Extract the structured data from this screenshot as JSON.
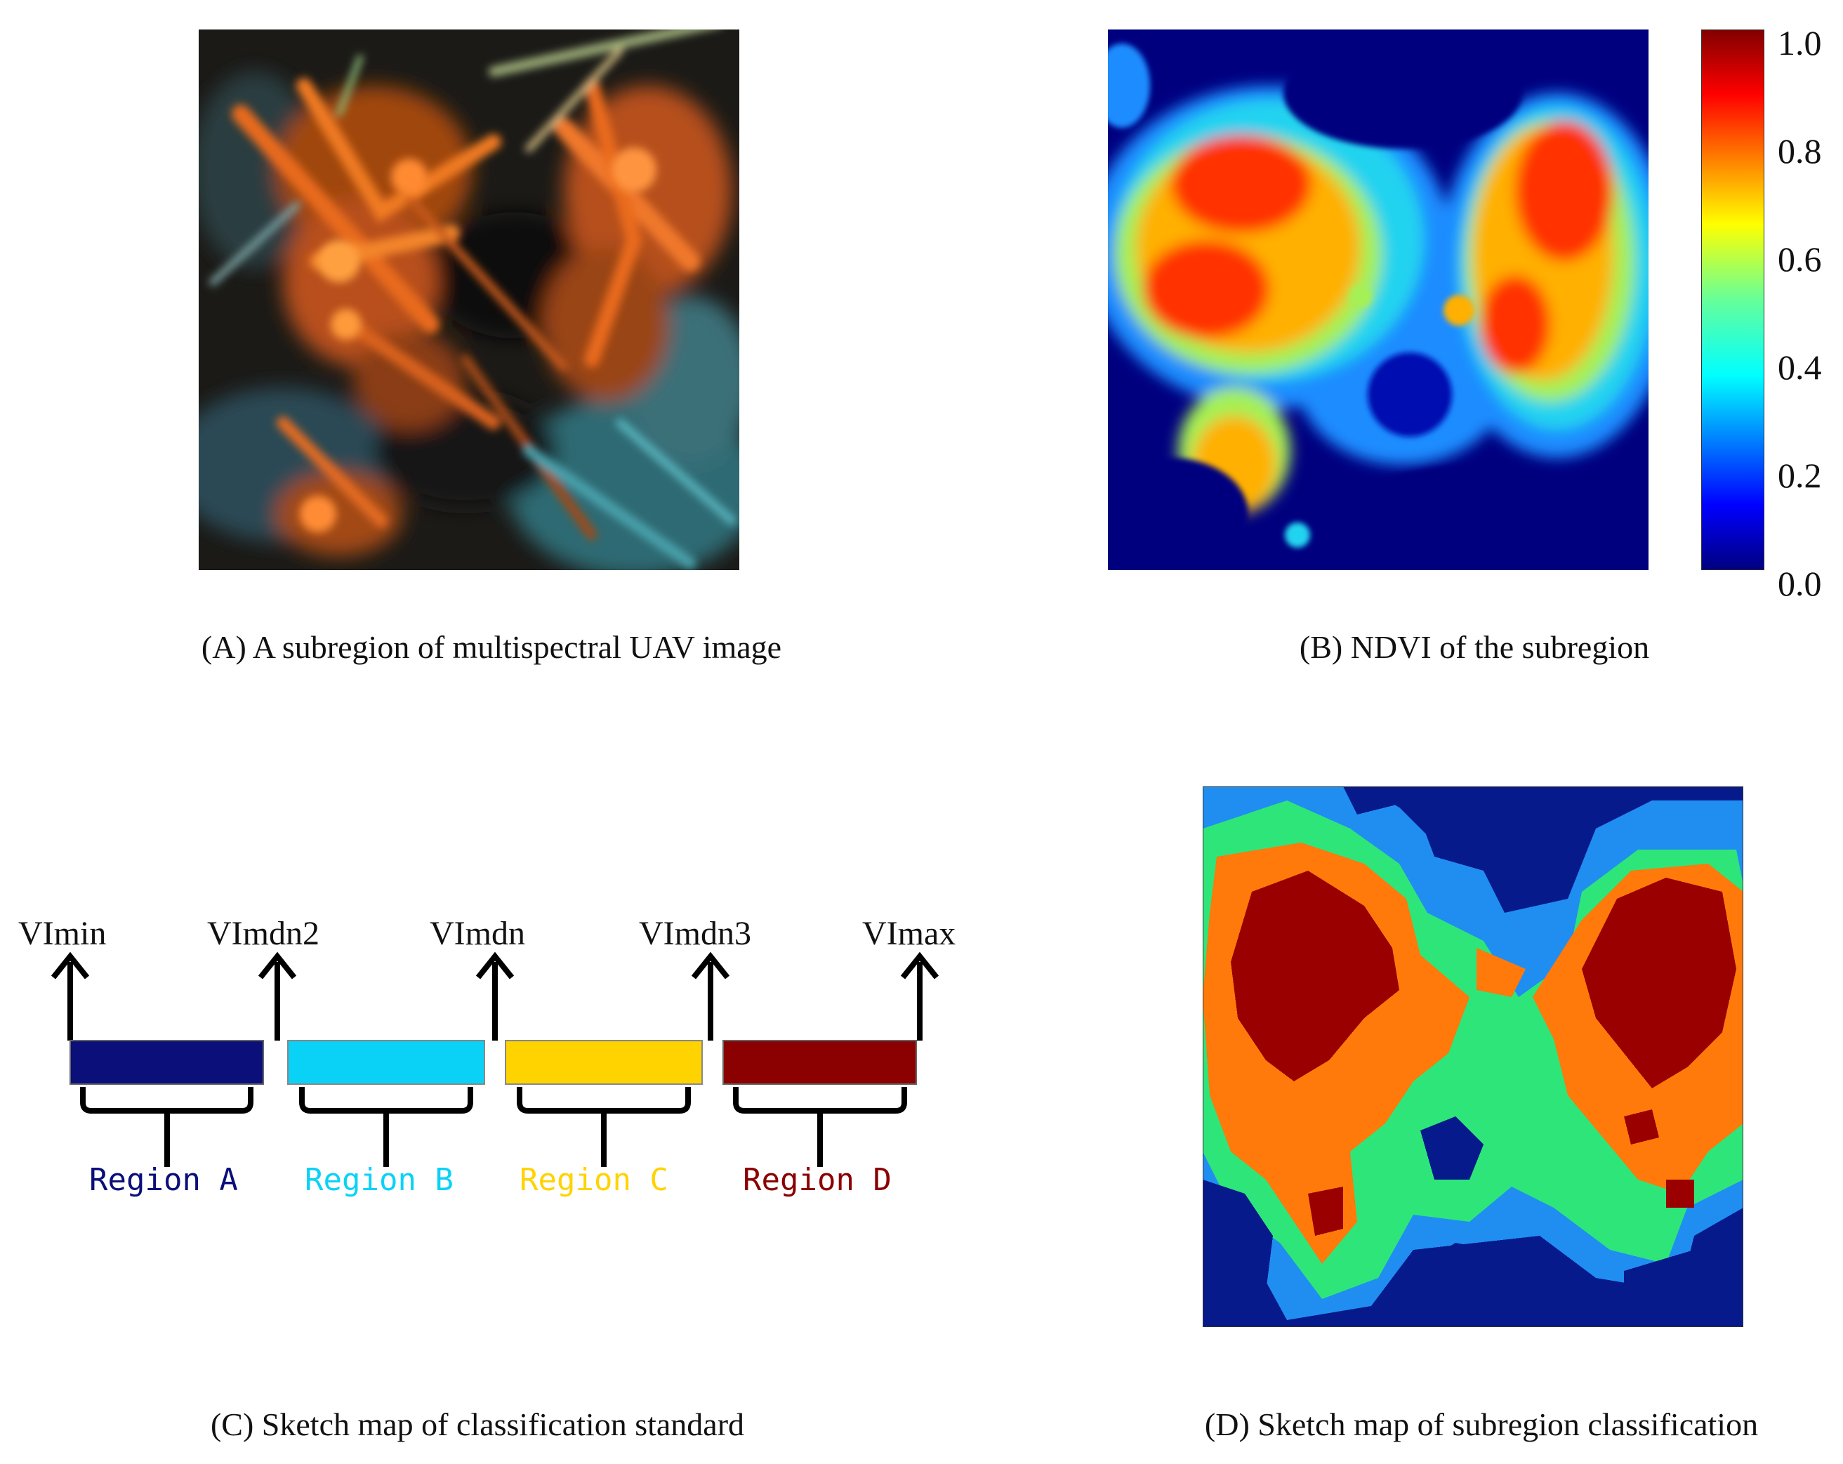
{
  "captions": {
    "a": "(A) A subregion of multispectral UAV image",
    "b": "(B) NDVI of the subregion",
    "c": "(C) Sketch map of classification standard",
    "d": "(D) Sketch map of subregion classification"
  },
  "colorbar": {
    "ticks": [
      "1.0",
      "0.8",
      "0.6",
      "0.4",
      "0.2",
      "0.0"
    ]
  },
  "thresholds": [
    "VImin",
    "VImdn2",
    "VImdn",
    "VImdn3",
    "VImax"
  ],
  "regions": [
    {
      "label": "Region A",
      "color": "#0a0f7a"
    },
    {
      "label": "Region B",
      "color": "#0ad2f7"
    },
    {
      "label": "Region C",
      "color": "#ffd300"
    },
    {
      "label": "Region D",
      "color": "#8b0000"
    }
  ],
  "class_colors": {
    "low": "#061a8c",
    "mid_low": "#1f8ef0",
    "mid": "#2ee57a",
    "mid_high": "#ff7a0a",
    "high": "#9a0000"
  }
}
